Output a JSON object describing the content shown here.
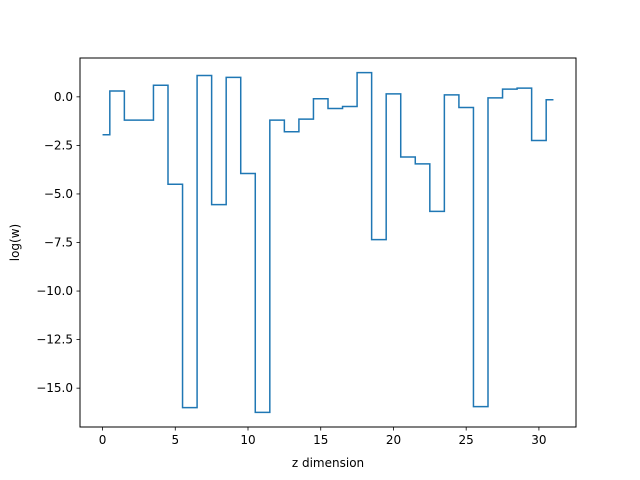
{
  "chart_data": {
    "type": "line",
    "drawstyle": "steps-mid",
    "title": "",
    "xlabel": "z dimension",
    "ylabel": "log(w)",
    "xlim": [
      -1.55,
      32.55
    ],
    "ylim": [
      -17.0,
      2.0
    ],
    "grid": false,
    "color": "#1f77b4",
    "x": [
      0,
      1,
      2,
      3,
      4,
      5,
      6,
      7,
      8,
      9,
      10,
      11,
      12,
      13,
      14,
      15,
      16,
      17,
      18,
      19,
      20,
      21,
      22,
      23,
      24,
      25,
      26,
      27,
      28,
      29,
      30,
      31
    ],
    "values": [
      -1.95,
      0.3,
      -1.2,
      -1.2,
      0.6,
      -4.5,
      -16.0,
      1.1,
      -5.55,
      1.0,
      -3.95,
      -16.25,
      -1.2,
      -1.8,
      -1.15,
      -0.1,
      -0.6,
      -0.5,
      1.25,
      -7.35,
      0.15,
      -3.1,
      -3.45,
      -5.9,
      0.1,
      -0.55,
      -15.95,
      -0.05,
      0.4,
      0.45,
      -2.25,
      -0.15
    ],
    "xticks": [
      0,
      5,
      10,
      15,
      20,
      25,
      30
    ],
    "xtick_labels": [
      "0",
      "5",
      "10",
      "15",
      "20",
      "25",
      "30"
    ],
    "yticks": [
      0.0,
      -2.5,
      -5.0,
      -7.5,
      -10.0,
      -12.5,
      -15.0
    ],
    "ytick_labels": [
      "0.0",
      "−2.5",
      "−5.0",
      "−7.5",
      "−10.0",
      "−12.5",
      "−15.0"
    ]
  }
}
